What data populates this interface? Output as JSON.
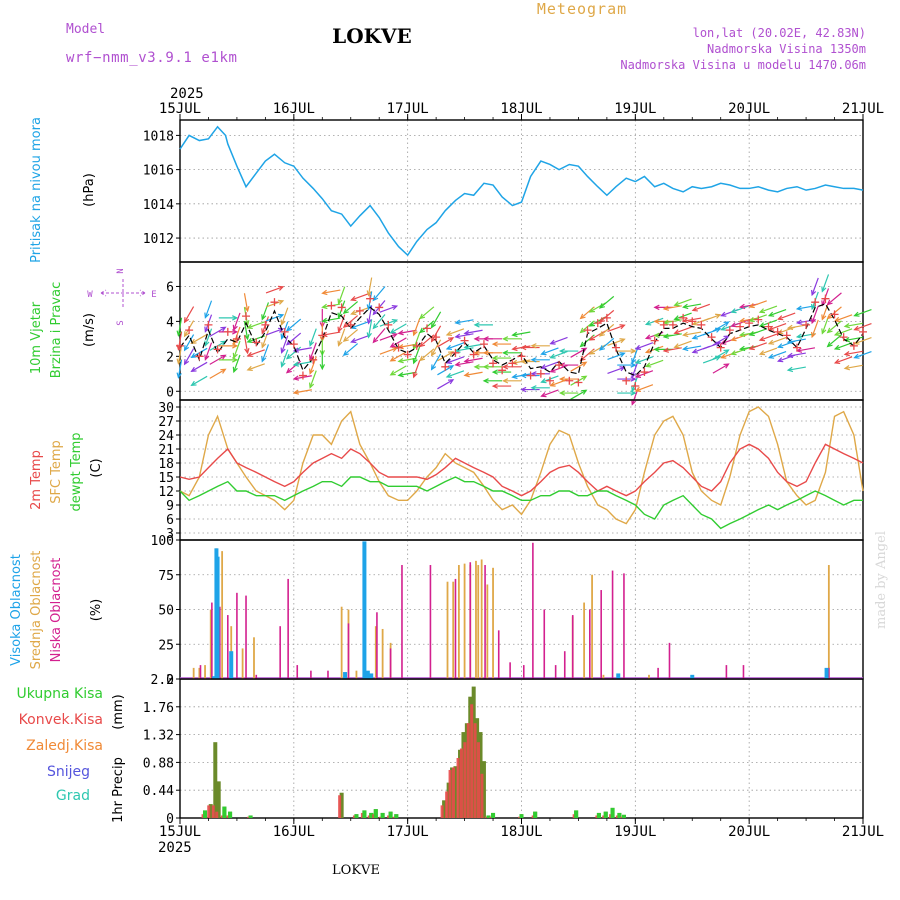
{
  "header": {
    "model_label": "Model",
    "model_name": "wrf−nmm_v3.9.1 e1km",
    "station": "LOKVE",
    "meteogram_label": "Meteogram",
    "lonlat": "lon,lat (20.02E, 42.83N)",
    "altitude": "Nadmorska Visina 1350m",
    "model_altitude": "Nadmorska Visina u modelu 1470.06m",
    "year_top": "2025",
    "year_bottom": "2025",
    "footer_station": "LOKVE",
    "credit": "made by Angel"
  },
  "colors": {
    "pressure": "#1fa4e6",
    "temp2m": "#e84a4a",
    "sfc": "#dfa848",
    "dewpt": "#31cc31",
    "high": "#1ea3e8",
    "mid": "#dfa848",
    "low": "#d3208f",
    "total": "#31cc31",
    "conv": "#e84a4a",
    "frozen": "#f08a37",
    "snow": "#5555dd",
    "hail": "#2ec7b0",
    "dark_bar": "#6b8a2a",
    "purple": "#b050d0",
    "frame": "#000000"
  },
  "chart_data": [
    {
      "type": "line",
      "x_ticks": [
        "15JUL",
        "16JUL",
        "17JUL",
        "18JUL",
        "19JUL",
        "20JUL",
        "21JUL"
      ],
      "ylabel": [
        "Pritisak na nivou mora",
        "(hPa)"
      ],
      "yticks": [
        1012,
        1014,
        1016,
        1018
      ],
      "ylim": [
        1010.6,
        1018.9
      ],
      "grid": true,
      "x_days": [
        0,
        0.08,
        0.17,
        0.25,
        0.33,
        0.4,
        0.42,
        0.5,
        0.58,
        0.67,
        0.75,
        0.83,
        0.92,
        1.0,
        1.08,
        1.17,
        1.25,
        1.33,
        1.42,
        1.5,
        1.58,
        1.67,
        1.75,
        1.83,
        1.92,
        2.0,
        2.08,
        2.17,
        2.25,
        2.33,
        2.42,
        2.5,
        2.58,
        2.67,
        2.75,
        2.83,
        2.92,
        3.0,
        3.08,
        3.17,
        3.25,
        3.33,
        3.42,
        3.5,
        3.58,
        3.67,
        3.75,
        3.83,
        3.92,
        4.0,
        4.08,
        4.17,
        4.25,
        4.33,
        4.42,
        4.5,
        4.58,
        4.67,
        4.75,
        4.83,
        4.92,
        5.0,
        5.08,
        5.17,
        5.25,
        5.33,
        5.42,
        5.5,
        5.58,
        5.67,
        5.75,
        5.83,
        5.92,
        6.0
      ],
      "values": [
        1017.2,
        1018.0,
        1017.7,
        1017.8,
        1018.5,
        1018.0,
        1017.5,
        1016.2,
        1015.0,
        1015.8,
        1016.5,
        1016.9,
        1016.4,
        1016.2,
        1015.5,
        1014.9,
        1014.3,
        1013.6,
        1013.4,
        1012.7,
        1013.3,
        1013.9,
        1013.2,
        1012.3,
        1011.5,
        1011.0,
        1011.8,
        1012.5,
        1012.9,
        1013.6,
        1014.2,
        1014.6,
        1014.5,
        1015.2,
        1015.1,
        1014.4,
        1013.9,
        1014.1,
        1015.6,
        1016.5,
        1016.3,
        1016.0,
        1016.3,
        1016.2,
        1015.6,
        1015.0,
        1014.5,
        1015.0,
        1015.5,
        1015.3,
        1015.6,
        1015.0,
        1015.2,
        1014.9,
        1014.7,
        1015.0,
        1014.9,
        1015.0,
        1015.2,
        1015.1,
        1014.9,
        1014.9,
        1015.0,
        1014.8,
        1014.7,
        1014.9,
        1015.0,
        1014.8,
        1014.9,
        1015.1,
        1015.0,
        1014.9,
        1014.9,
        1014.8
      ]
    },
    {
      "type": "scatter",
      "ylabel": [
        "10m Vjetar",
        "Brzina i Pravac",
        "(m/s)"
      ],
      "direction_key": [
        "N",
        "S",
        "W",
        "E"
      ],
      "yticks": [
        0,
        2,
        4,
        6
      ],
      "ylim": [
        -0.5,
        7.4
      ],
      "grid": true,
      "x_days": [
        0,
        0.08,
        0.17,
        0.25,
        0.33,
        0.42,
        0.5,
        0.58,
        0.67,
        0.75,
        0.83,
        0.92,
        1.0,
        1.08,
        1.17,
        1.25,
        1.33,
        1.42,
        1.5,
        1.58,
        1.67,
        1.75,
        1.83,
        1.92,
        2.0,
        2.08,
        2.17,
        2.25,
        2.33,
        2.42,
        2.5,
        2.58,
        2.67,
        2.75,
        2.83,
        2.92,
        3.0,
        3.08,
        3.17,
        3.25,
        3.33,
        3.42,
        3.5,
        3.58,
        3.67,
        3.75,
        3.83,
        3.92,
        4.0,
        4.08,
        4.17,
        4.25,
        4.33,
        4.42,
        4.5,
        4.58,
        4.67,
        4.75,
        4.83,
        4.92,
        5.0,
        5.08,
        5.17,
        5.25,
        5.33,
        5.42,
        5.5,
        5.58,
        5.67,
        5.75,
        5.83,
        5.92,
        6.0
      ],
      "speed": [
        2.5,
        3.2,
        1.8,
        3.5,
        2.2,
        3.0,
        2.8,
        3.9,
        2.6,
        3.4,
        4.6,
        3.1,
        2.6,
        1.2,
        1.9,
        3.0,
        4.5,
        4.3,
        3.6,
        4.2,
        4.8,
        4.4,
        3.5,
        2.4,
        2.2,
        2.5,
        3.3,
        2.9,
        1.6,
        2.2,
        2.8,
        2.2,
        2.6,
        1.8,
        1.5,
        1.8,
        2.1,
        1.3,
        1.4,
        1.1,
        1.7,
        1.1,
        1.0,
        3.3,
        3.6,
        3.9,
        2.4,
        1.1,
        0.9,
        1.4,
        2.8,
        3.6,
        3.6,
        3.9,
        3.7,
        3.6,
        3.0,
        2.5,
        3.3,
        3.5,
        3.7,
        3.8,
        3.5,
        3.3,
        3.1,
        2.5,
        3.6,
        4.8,
        5.0,
        4.1,
        3.0,
        2.6,
        3.3
      ],
      "gust": [
        3.8,
        4.7,
        3.2,
        5.0,
        3.6,
        4.6,
        4.2,
        5.5,
        4.0,
        5.0,
        6.3,
        4.6,
        3.9,
        2.1,
        3.0,
        4.4,
        6.1,
        6.0,
        5.0,
        5.8,
        6.5,
        6.0,
        5.0,
        3.7,
        3.3,
        3.8,
        4.8,
        4.3,
        2.6,
        3.4,
        4.1,
        3.3,
        3.9,
        2.8,
        2.4,
        2.8,
        3.2,
        2.1,
        2.2,
        1.8,
        2.7,
        1.8,
        1.7,
        4.7,
        5.1,
        5.4,
        3.7,
        1.8,
        1.5,
        2.3,
        4.1,
        5.0,
        5.0,
        5.4,
        5.2,
        5.0,
        4.3,
        3.7,
        4.7,
        4.9,
        5.1,
        5.3,
        4.9,
        4.6,
        4.4,
        3.7,
        5.0,
        6.3,
        6.5,
        5.6,
        4.3,
        3.8,
        4.6
      ],
      "direction_deg": [
        190,
        210,
        240,
        200,
        60,
        90,
        200,
        170,
        250,
        200,
        70,
        200,
        230,
        260,
        200,
        180,
        260,
        200,
        230,
        250,
        190,
        220,
        70,
        240,
        260,
        200,
        230,
        210,
        60,
        250,
        260,
        260,
        270,
        270,
        270,
        270,
        260,
        270,
        270,
        250,
        250,
        270,
        60,
        230,
        240,
        230,
        70,
        90,
        200,
        250,
        250,
        270,
        260,
        250,
        260,
        250,
        70,
        60,
        250,
        250,
        260,
        250,
        250,
        250,
        250,
        260,
        260,
        200,
        200,
        230,
        250,
        260,
        250
      ]
    },
    {
      "type": "line",
      "ylabel": [
        "2m Temp",
        "SFC Temp",
        "dewpt Temp",
        "(C)"
      ],
      "yticks": [
        3,
        6,
        9,
        12,
        15,
        18,
        21,
        24,
        27,
        30
      ],
      "ylim": [
        1.5,
        31.5
      ],
      "grid": true,
      "x_days": [
        0,
        0.08,
        0.17,
        0.25,
        0.33,
        0.42,
        0.5,
        0.58,
        0.67,
        0.75,
        0.83,
        0.92,
        1.0,
        1.08,
        1.17,
        1.25,
        1.33,
        1.42,
        1.5,
        1.58,
        1.67,
        1.75,
        1.83,
        1.92,
        2.0,
        2.08,
        2.17,
        2.25,
        2.33,
        2.42,
        2.5,
        2.58,
        2.67,
        2.75,
        2.83,
        2.92,
        3.0,
        3.08,
        3.17,
        3.25,
        3.33,
        3.42,
        3.5,
        3.58,
        3.67,
        3.75,
        3.83,
        3.92,
        4.0,
        4.08,
        4.17,
        4.25,
        4.33,
        4.42,
        4.5,
        4.58,
        4.67,
        4.75,
        4.83,
        4.92,
        5.0,
        5.08,
        5.17,
        5.25,
        5.33,
        5.42,
        5.5,
        5.58,
        5.67,
        5.75,
        5.83,
        5.92,
        6.0
      ],
      "series": [
        {
          "name": "2m Temp",
          "values": [
            15,
            14.5,
            15,
            17,
            19,
            21,
            18,
            17,
            16,
            15,
            14,
            13,
            14,
            16,
            18,
            19,
            20,
            19,
            21,
            20,
            18,
            16,
            15,
            15,
            15,
            15,
            14.5,
            15.5,
            17,
            19,
            18,
            17,
            16,
            15,
            13,
            12,
            11,
            12,
            14,
            16,
            17,
            17.5,
            16,
            14,
            12,
            13,
            12,
            11,
            12,
            14,
            16,
            18,
            18.5,
            17,
            15,
            13,
            12,
            14,
            18,
            21,
            22,
            21,
            19,
            16,
            14,
            13,
            14,
            18,
            22,
            21,
            20,
            19,
            18
          ]
        },
        {
          "name": "SFC Temp",
          "values": [
            12,
            11,
            15,
            24,
            28,
            21,
            18,
            15,
            12,
            11,
            10,
            8,
            10,
            18,
            24,
            24,
            22,
            27,
            29,
            22,
            18,
            14,
            11,
            10,
            10,
            12,
            15,
            17,
            20,
            18,
            17,
            16,
            13,
            10,
            8,
            9,
            7,
            10,
            16,
            22,
            25,
            24,
            18,
            13,
            9,
            8,
            6,
            5,
            8,
            16,
            24,
            27,
            28,
            24,
            16,
            12,
            10,
            9,
            15,
            24,
            29,
            30,
            28,
            22,
            14,
            11,
            9,
            10,
            16,
            28,
            29,
            24,
            12
          ]
        },
        {
          "name": "dewpt Temp",
          "values": [
            12,
            10,
            11,
            12,
            13,
            14,
            12,
            12,
            11,
            11,
            11,
            10,
            11,
            12,
            13,
            14,
            14,
            13,
            15,
            15,
            14,
            14,
            13,
            13,
            13,
            13,
            12,
            13,
            14,
            15,
            14,
            14,
            13,
            12,
            12,
            11,
            10,
            10,
            11,
            11,
            12,
            12,
            11,
            11,
            12,
            12,
            11,
            10,
            9,
            7,
            6,
            9,
            10,
            11,
            9,
            7,
            6,
            4,
            5,
            6,
            7,
            8,
            9,
            8,
            9,
            10,
            11,
            12,
            11,
            10,
            9,
            10,
            10
          ]
        }
      ]
    },
    {
      "type": "bar",
      "ylabel": [
        "Visoka Oblacnost",
        "Srednja Oblacnost",
        "Niska Oblacnost",
        "(%)"
      ],
      "yticks": [
        0,
        25,
        50,
        75,
        100
      ],
      "ylim": [
        0,
        100
      ],
      "grid": true,
      "series": [
        {
          "name": "Visoka Oblacnost",
          "x_days": [
            0.3,
            0.32,
            0.33,
            0.45,
            1.45,
            1.62,
            1.65,
            1.68,
            3.85,
            4.5,
            5.68
          ],
          "values": [
            2,
            94,
            88,
            20,
            5,
            99,
            6,
            4,
            4,
            3,
            8
          ]
        },
        {
          "name": "Srednja Oblacnost",
          "x_days": [
            0.12,
            0.17,
            0.22,
            0.27,
            0.32,
            0.37,
            0.45,
            0.55,
            0.65,
            1.42,
            1.48,
            1.55,
            1.62,
            1.72,
            1.78,
            1.85,
            2.35,
            2.4,
            2.45,
            2.5,
            2.55,
            2.6,
            2.62,
            2.65,
            2.7,
            2.75,
            3.45,
            3.55,
            3.62,
            3.72,
            4.12,
            5.7
          ],
          "values": [
            8,
            8,
            10,
            50,
            94,
            92,
            38,
            22,
            30,
            52,
            50,
            6,
            5,
            38,
            36,
            26,
            70,
            70,
            82,
            83,
            82,
            85,
            82,
            86,
            68,
            80,
            45,
            55,
            75,
            3,
            3,
            82
          ]
        },
        {
          "name": "Niska Oblacnost",
          "x_days": [
            0.18,
            0.28,
            0.35,
            0.42,
            0.5,
            0.58,
            0.67,
            0.88,
            0.95,
            1.03,
            1.15,
            1.3,
            1.48,
            1.73,
            1.85,
            1.95,
            2.2,
            2.42,
            2.55,
            2.68,
            2.8,
            2.9,
            3.02,
            3.1,
            3.2,
            3.3,
            3.38,
            3.45,
            3.6,
            3.7,
            3.8,
            3.9,
            4.2,
            4.3,
            4.8,
            4.95,
            5.7
          ],
          "values": [
            10,
            55,
            52,
            46,
            62,
            60,
            3,
            38,
            72,
            10,
            6,
            6,
            40,
            48,
            22,
            82,
            82,
            72,
            84,
            82,
            35,
            12,
            10,
            98,
            50,
            10,
            20,
            46,
            50,
            64,
            78,
            76,
            8,
            26,
            10,
            10,
            8
          ]
        }
      ]
    },
    {
      "type": "bar",
      "x_ticks": [
        "15JUL",
        "16JUL",
        "17JUL",
        "18JUL",
        "19JUL",
        "20JUL",
        "21JUL"
      ],
      "ylabel": [
        "1hr Precip",
        "(mm)"
      ],
      "legend": [
        "Ukupna Kisa",
        "Konvek.Kisa",
        "Zaledj.Kisa",
        "Snijeg",
        "Grad"
      ],
      "yticks": [
        0,
        0.44,
        0.88,
        1.32,
        1.76,
        2.2
      ],
      "ylim": [
        0,
        2.2
      ],
      "grid": true,
      "x_days": [
        0.22,
        0.27,
        0.31,
        0.34,
        0.39,
        0.44,
        0.62,
        1.42,
        1.55,
        1.62,
        1.68,
        1.72,
        1.78,
        1.85,
        1.9,
        2.32,
        2.36,
        2.39,
        2.42,
        2.46,
        2.49,
        2.52,
        2.55,
        2.58,
        2.61,
        2.64,
        2.67,
        2.71,
        2.75,
        3.0,
        3.12,
        3.48,
        3.68,
        3.74,
        3.8,
        3.86,
        3.9
      ],
      "total": [
        0.12,
        0.22,
        1.2,
        0.58,
        0.18,
        0.1,
        0.04,
        0.4,
        0.06,
        0.12,
        0.08,
        0.14,
        0.08,
        0.1,
        0.06,
        0.28,
        0.56,
        0.8,
        0.82,
        1.08,
        1.36,
        1.5,
        1.92,
        2.08,
        1.58,
        1.36,
        0.9,
        0.04,
        0.08,
        0.06,
        0.1,
        0.12,
        0.08,
        0.1,
        0.16,
        0.08,
        0.05
      ],
      "convective": [
        0.06,
        0.2,
        0.2,
        0.1,
        0.04,
        0.04,
        0.02,
        0.36,
        0.04,
        0.08,
        0.04,
        0.06,
        0.02,
        0.04,
        0.02,
        0.2,
        0.42,
        0.76,
        0.8,
        0.95,
        1.1,
        1.2,
        1.5,
        1.8,
        1.5,
        1.2,
        0.7,
        0.02,
        0.02,
        0.02,
        0.04,
        0.06,
        0.04,
        0.04,
        0.06,
        0.04,
        0.02
      ]
    }
  ],
  "x_range_days": [
    0,
    6
  ]
}
